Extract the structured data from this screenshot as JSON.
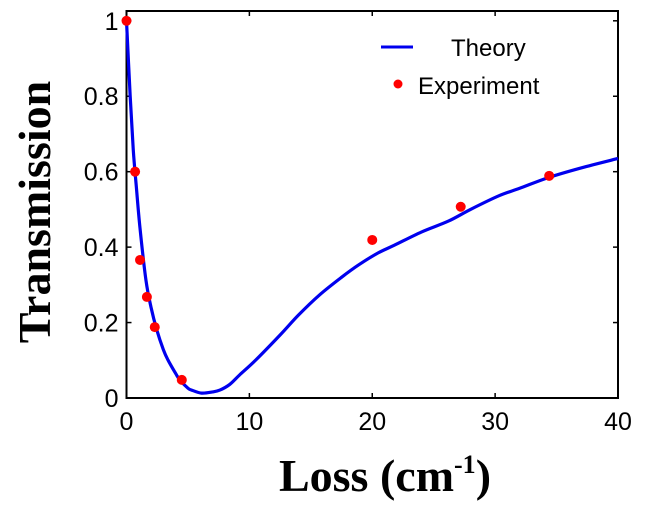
{
  "chart_data": {
    "type": "line",
    "title": "",
    "xlabel": "Loss (cm",
    "xlabel_sup": "-1",
    "xlabel_close": ")",
    "ylabel": "Transmission",
    "xlim": [
      0,
      40
    ],
    "ylim": [
      0,
      1.026
    ],
    "xticks": [
      0,
      10,
      20,
      30,
      40
    ],
    "xtick_labels": [
      "0",
      "10",
      "20",
      "30",
      "40"
    ],
    "yticks": [
      0,
      0.2,
      0.4,
      0.6,
      0.8,
      1
    ],
    "ytick_labels": [
      "0",
      "0.2",
      "0.4",
      "0.6",
      "0.8",
      "1"
    ],
    "grid": false,
    "legend_position": "top-right",
    "series": [
      {
        "name": "Theory",
        "kind": "line",
        "color": "#0000ee",
        "x": [
          0,
          0.3,
          0.55,
          0.8,
          1.1,
          1.58,
          2.0,
          2.47,
          3.0,
          3.37,
          4.0,
          4.34,
          5.0,
          5.3,
          6.1,
          7.0,
          7.6,
          8.4,
          9.2,
          10.5,
          12.5,
          14.0,
          15.7,
          17.5,
          18.9,
          20.5,
          21.8,
          24.0,
          26.2,
          28.0,
          30.3,
          32.0,
          34.3,
          37.0,
          40.0
        ],
        "y": [
          1.0,
          0.8,
          0.658,
          0.56,
          0.45,
          0.313,
          0.24,
          0.18,
          0.128,
          0.101,
          0.065,
          0.048,
          0.026,
          0.021,
          0.013,
          0.016,
          0.021,
          0.036,
          0.061,
          0.1,
          0.167,
          0.22,
          0.273,
          0.32,
          0.353,
          0.385,
          0.405,
          0.44,
          0.469,
          0.5,
          0.536,
          0.556,
          0.584,
          0.61,
          0.635
        ]
      },
      {
        "name": "Experiment",
        "kind": "scatter",
        "color": "#ff0000",
        "x": [
          0,
          0.7,
          1.1,
          1.66,
          2.3,
          4.5,
          20.0,
          27.2,
          34.4
        ],
        "y": [
          1.0,
          0.6,
          0.366,
          0.268,
          0.188,
          0.048,
          0.419,
          0.507,
          0.589
        ]
      }
    ]
  }
}
